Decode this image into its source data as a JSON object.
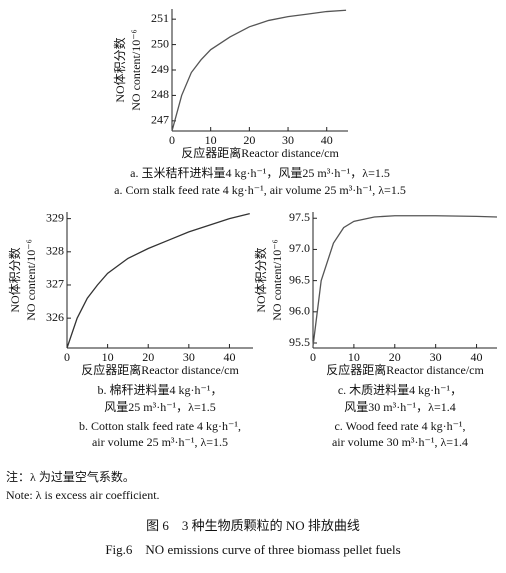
{
  "chart_data": [
    {
      "type": "line",
      "x_label": "反应器距离Reactor distance/cm",
      "y_label": [
        "NO体积分数",
        "NO content/10⁻⁶"
      ],
      "caption": [
        "a. 玉米秸秆进料量4 kg·h⁻¹，风量25 m³·h⁻¹，λ=1.5",
        "a. Corn stalk feed rate 4 kg·h⁻¹, air volume 25 m³·h⁻¹, λ=1.5"
      ],
      "x": [
        0,
        2.5,
        5,
        7.5,
        10,
        15,
        20,
        25,
        30,
        35,
        40,
        45
      ],
      "values": [
        246.6,
        248.0,
        248.9,
        249.4,
        249.8,
        250.3,
        250.7,
        250.95,
        251.1,
        251.2,
        251.3,
        251.35
      ],
      "color": "#555555",
      "xlim": [
        0,
        45.5
      ],
      "ylim": [
        246.6,
        251.4
      ],
      "xticks": [
        0,
        10,
        20,
        30,
        40
      ],
      "yticks": [
        247,
        248,
        249,
        250,
        251
      ]
    },
    {
      "type": "line",
      "x_label": "反应器距离Reactor distance/cm",
      "y_label": [
        "NO体积分数",
        "NO content/10⁻⁶"
      ],
      "caption": [
        "b. 棉秆进料量4 kg·h⁻¹，",
        "风量25 m³·h⁻¹，λ=1.5",
        "b. Cotton stalk feed rate 4 kg·h⁻¹,",
        "air volume 25 m³·h⁻¹, λ=1.5"
      ],
      "x": [
        0,
        2.5,
        5,
        7.5,
        10,
        15,
        20,
        25,
        30,
        35,
        40,
        45
      ],
      "values": [
        325.1,
        326.0,
        326.6,
        327.0,
        327.35,
        327.8,
        328.1,
        328.35,
        328.6,
        328.8,
        329.0,
        329.15
      ],
      "color": "#333333",
      "xlim": [
        0,
        45.8
      ],
      "ylim": [
        325.1,
        329.2
      ],
      "xticks": [
        0,
        10,
        20,
        30,
        40
      ],
      "yticks": [
        326,
        327,
        328,
        329
      ]
    },
    {
      "type": "line",
      "x_label": "反应器距离Reactor distance/cm",
      "y_label": [
        "NO体积分数",
        "NO content/10⁻⁶"
      ],
      "caption": [
        "c. 木质进料量4 kg·h⁻¹，",
        "风量30 m³·h⁻¹，λ=1.4",
        "c. Wood feed rate 4 kg·h⁻¹,",
        "air volume 30 m³·h⁻¹, λ=1.4"
      ],
      "x": [
        0,
        2,
        5,
        7.5,
        10,
        15,
        20,
        30,
        40,
        45
      ],
      "values": [
        95.45,
        96.5,
        97.1,
        97.35,
        97.45,
        97.52,
        97.54,
        97.54,
        97.53,
        97.52
      ],
      "color": "#555555",
      "xlim": [
        0,
        45
      ],
      "ylim": [
        95.42,
        97.6
      ],
      "xticks": [
        0,
        10,
        20,
        30,
        40
      ],
      "yticks": [
        {
          "value": 95.5,
          "label": "95.5"
        },
        {
          "value": 96,
          "label": "96.0"
        },
        {
          "value": 96.5,
          "label": "96.5"
        },
        {
          "value": 97,
          "label": "97.0"
        },
        {
          "value": 97.5,
          "label": "97.5"
        }
      ]
    }
  ],
  "note": [
    "注：λ 为过量空气系数。",
    "Note: λ is excess air coefficient."
  ],
  "figure_caption": [
    "图 6　3 种生物质颗粒的 NO 排放曲线",
    "Fig.6　NO emissions curve of three biomass pellet fuels"
  ]
}
